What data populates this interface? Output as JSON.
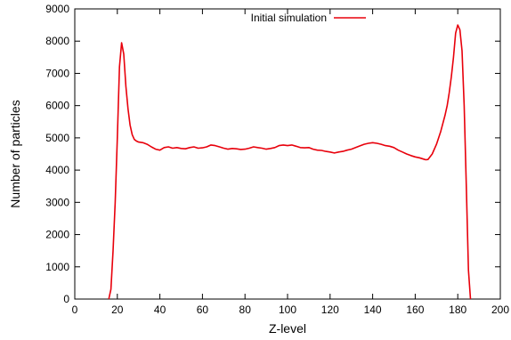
{
  "chart_data": {
    "type": "line",
    "title": "",
    "xlabel": "Z-level",
    "ylabel": "Number of particles",
    "xlim": [
      0,
      200
    ],
    "ylim": [
      0,
      9000
    ],
    "xticks": [
      0,
      20,
      40,
      60,
      80,
      100,
      120,
      140,
      160,
      180,
      200
    ],
    "yticks": [
      0,
      1000,
      2000,
      3000,
      4000,
      5000,
      6000,
      7000,
      8000,
      9000
    ],
    "grid": false,
    "legend_position": "top-center",
    "series": [
      {
        "name": "Initial simulation",
        "color": "#e8000b",
        "x": [
          16,
          17,
          18,
          19,
          20,
          21,
          22,
          23,
          24,
          25,
          26,
          27,
          28,
          29,
          30,
          32,
          34,
          36,
          38,
          40,
          42,
          44,
          46,
          48,
          50,
          52,
          54,
          56,
          58,
          60,
          62,
          64,
          66,
          68,
          70,
          72,
          74,
          76,
          78,
          80,
          82,
          84,
          86,
          88,
          90,
          92,
          94,
          96,
          98,
          100,
          102,
          104,
          106,
          108,
          110,
          112,
          114,
          116,
          118,
          120,
          122,
          124,
          126,
          128,
          130,
          132,
          134,
          136,
          138,
          140,
          142,
          144,
          146,
          148,
          150,
          152,
          154,
          156,
          158,
          160,
          162,
          164,
          165,
          166,
          168,
          170,
          172,
          174,
          175,
          176,
          177,
          178,
          179,
          180,
          181,
          182,
          183,
          184,
          185,
          186
        ],
        "y": [
          0,
          300,
          1500,
          3000,
          5000,
          7200,
          7950,
          7600,
          6600,
          5900,
          5400,
          5100,
          4950,
          4900,
          4870,
          4850,
          4800,
          4720,
          4650,
          4620,
          4700,
          4720,
          4680,
          4700,
          4670,
          4660,
          4700,
          4720,
          4680,
          4690,
          4720,
          4780,
          4760,
          4720,
          4680,
          4650,
          4670,
          4660,
          4640,
          4650,
          4680,
          4720,
          4700,
          4680,
          4650,
          4670,
          4700,
          4760,
          4780,
          4760,
          4780,
          4740,
          4700,
          4690,
          4700,
          4650,
          4620,
          4610,
          4580,
          4560,
          4530,
          4560,
          4580,
          4620,
          4650,
          4700,
          4750,
          4800,
          4830,
          4850,
          4830,
          4800,
          4760,
          4740,
          4700,
          4620,
          4560,
          4500,
          4450,
          4410,
          4380,
          4340,
          4320,
          4330,
          4500,
          4800,
          5200,
          5700,
          6000,
          6400,
          6900,
          7500,
          8250,
          8500,
          8350,
          7700,
          6000,
          3500,
          900,
          0
        ]
      }
    ]
  }
}
